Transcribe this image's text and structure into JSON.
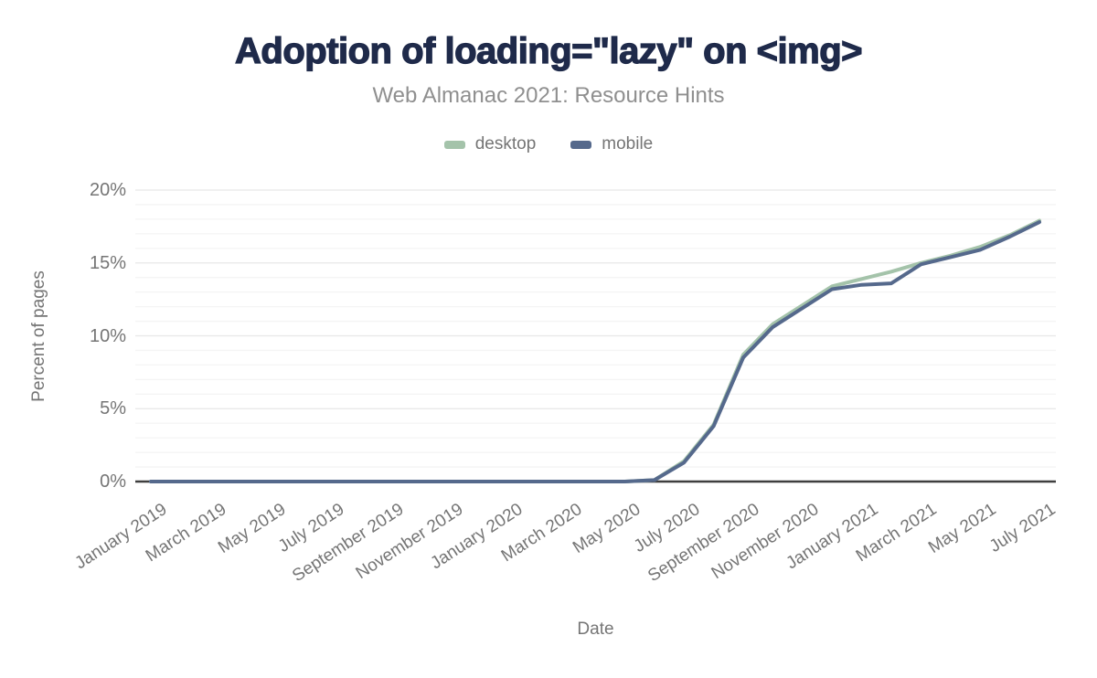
{
  "header": {
    "title": "Adoption of loading=\"lazy\" on <img>",
    "subtitle": "Web Almanac 2021: Resource Hints"
  },
  "legend": {
    "items": [
      {
        "label": "desktop",
        "color": "#a4c3aa"
      },
      {
        "label": "mobile",
        "color": "#55698c"
      }
    ]
  },
  "axes": {
    "y_title": "Percent of pages",
    "x_title": "Date",
    "y_ticks": [
      "0%",
      "5%",
      "10%",
      "15%",
      "20%"
    ],
    "x_tick_labels": [
      "January 2019",
      "March 2019",
      "May 2019",
      "July 2019",
      "September 2019",
      "November 2019",
      "January 2020",
      "March 2020",
      "May 2020",
      "July 2020",
      "September 2020",
      "November 2020",
      "January 2021",
      "March 2021",
      "May 2021",
      "July 2021"
    ]
  },
  "colors": {
    "title": "#1f2a4a",
    "subtitle": "#8f8f8f",
    "axis_text": "#757575",
    "desktop_line": "#a4c3aa",
    "mobile_line": "#55698c",
    "axis_line": "#3f3f3f",
    "gridline_major": "#e7e7e7",
    "gridline_minor": "#f4f4f4",
    "background": "#ffffff"
  },
  "chart_data": {
    "type": "line",
    "title": "Adoption of loading=\"lazy\" on <img>",
    "subtitle": "Web Almanac 2021: Resource Hints",
    "xlabel": "Date",
    "ylabel": "Percent of pages",
    "ylim": [
      0,
      20
    ],
    "y_tick_interval_major": 5,
    "y_tick_interval_minor": 1,
    "grid": "horizontal",
    "legend_position": "top",
    "x": [
      "January 2019",
      "February 2019",
      "March 2019",
      "April 2019",
      "May 2019",
      "June 2019",
      "July 2019",
      "August 2019",
      "September 2019",
      "October 2019",
      "November 2019",
      "December 2019",
      "January 2020",
      "February 2020",
      "March 2020",
      "April 2020",
      "May 2020",
      "June 2020",
      "July 2020",
      "August 2020",
      "September 2020",
      "October 2020",
      "November 2020",
      "December 2020",
      "January 2021",
      "February 2021",
      "March 2021",
      "April 2021",
      "May 2021",
      "June 2021",
      "July 2021"
    ],
    "series": [
      {
        "name": "desktop",
        "color": "#a4c3aa",
        "values": [
          0,
          0,
          0,
          0,
          0,
          0,
          0,
          0,
          0,
          0,
          0,
          0,
          0,
          0,
          0,
          0,
          0,
          0.1,
          1.4,
          3.9,
          8.7,
          10.8,
          12.1,
          13.4,
          13.9,
          14.4,
          15.0,
          15.5,
          16.1,
          16.9,
          17.9
        ]
      },
      {
        "name": "mobile",
        "color": "#55698c",
        "values": [
          0,
          0,
          0,
          0,
          0,
          0,
          0,
          0,
          0,
          0,
          0,
          0,
          0,
          0,
          0,
          0,
          0,
          0.1,
          1.3,
          3.8,
          8.5,
          10.6,
          11.9,
          13.2,
          13.5,
          13.6,
          14.9,
          15.4,
          15.9,
          16.8,
          17.8
        ]
      }
    ]
  }
}
